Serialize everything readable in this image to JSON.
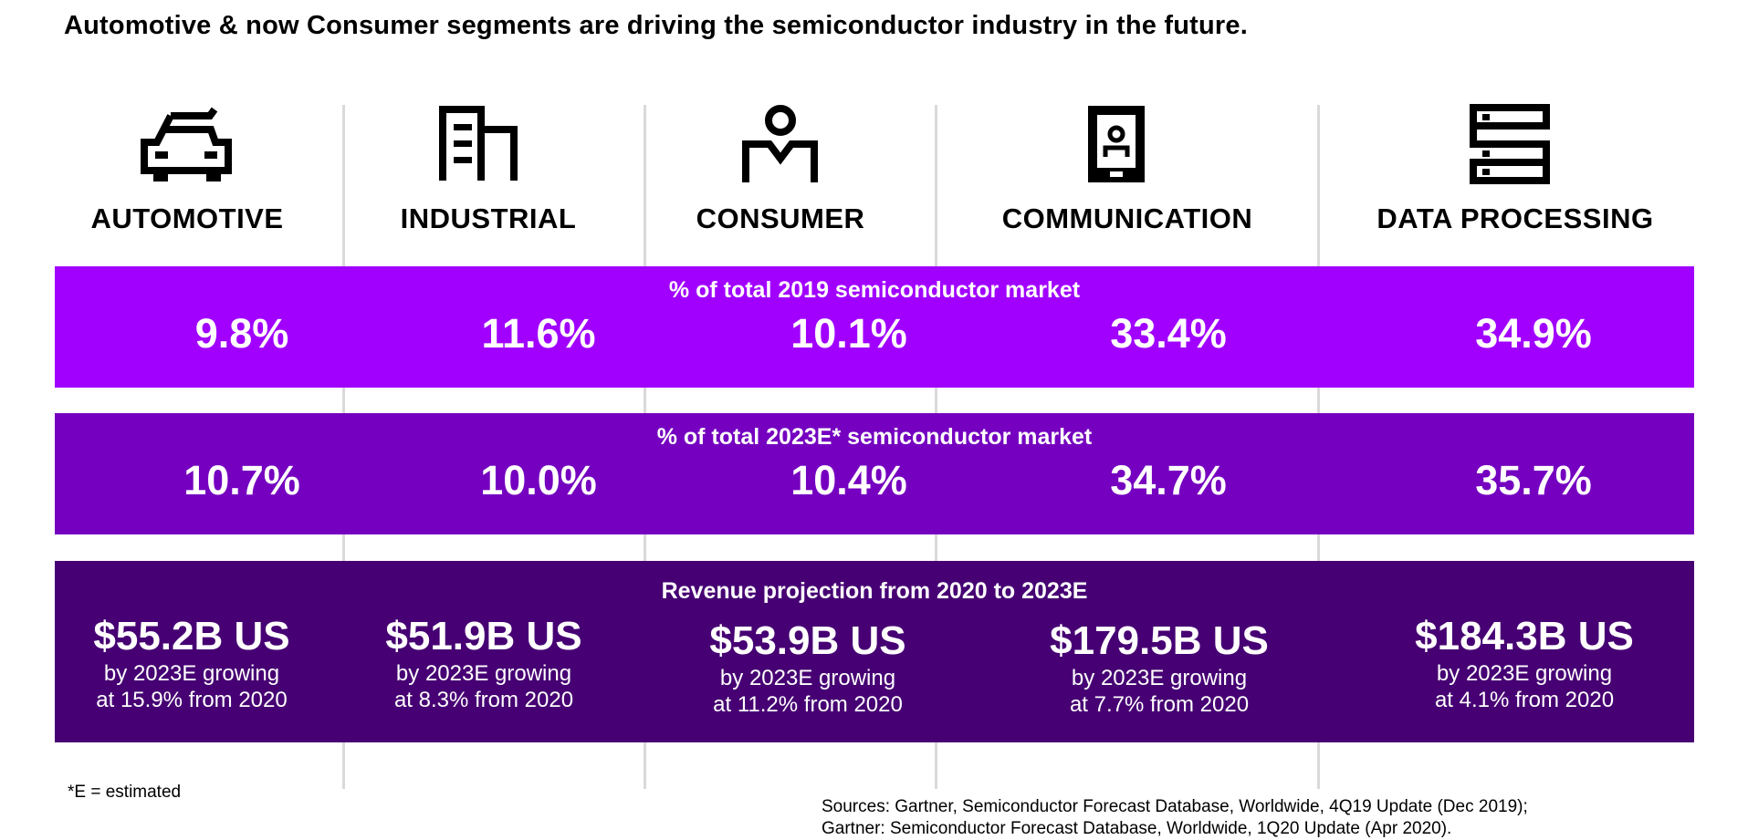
{
  "title": "Automotive & now Consumer segments are driving the semiconductor industry in the future.",
  "segments": [
    {
      "label": "AUTOMOTIVE",
      "icon": "car-icon"
    },
    {
      "label": "INDUSTRIAL",
      "icon": "factory-building-icon"
    },
    {
      "label": "CONSUMER",
      "icon": "person-icon"
    },
    {
      "label": "COMMUNICATION",
      "icon": "mobile-device-icon"
    },
    {
      "label": "DATA PROCESSING",
      "icon": "server-icon"
    }
  ],
  "share_2019": {
    "title": "% of total 2019 semiconductor market",
    "values": [
      "9.8%",
      "11.6%",
      "10.1%",
      "33.4%",
      "34.9%"
    ]
  },
  "share_2023": {
    "title": "% of total 2023E* semiconductor market",
    "values": [
      "10.7%",
      "10.0%",
      "10.4%",
      "34.7%",
      "35.7%"
    ]
  },
  "revenue": {
    "title": "Revenue projection from 2020 to 2023E",
    "items": [
      {
        "amount": "$55.2B US",
        "line1": "by 2023E growing",
        "line2": "at  15.9% from 2020"
      },
      {
        "amount": "$51.9B US",
        "line1": "by 2023E growing",
        "line2": "at  8.3% from 2020"
      },
      {
        "amount": "$53.9B US",
        "line1": "by 2023E growing",
        "line2": "at  11.2% from 2020"
      },
      {
        "amount": "$179.5B US",
        "line1": "by 2023E growing",
        "line2": "at  7.7% from 2020"
      },
      {
        "amount": "$184.3B US",
        "line1": "by 2023E growing",
        "line2": "at  4.1% from 2020"
      }
    ]
  },
  "footnote": "*E = estimated",
  "sources": [
    "Sources:  Gartner, Semiconductor Forecast Database, Worldwide, 4Q19 Update (Dec 2019);",
    "Gartner: Semiconductor Forecast Database, Worldwide, 1Q20 Update (Apr 2020)."
  ],
  "colors": {
    "band_2019": "#a100ff",
    "band_2023": "#7500c0",
    "band_revenue": "#460073",
    "divider": "#d9d9d9"
  }
}
